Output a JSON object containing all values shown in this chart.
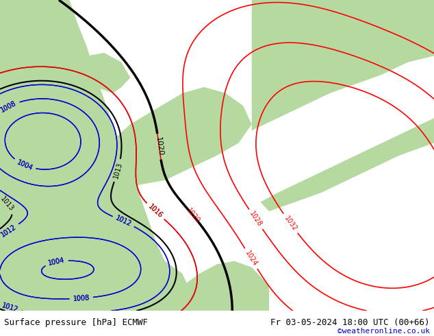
{
  "title_left": "Surface pressure [hPa] ECMWF",
  "title_right": "Fr 03-05-2024 18:00 UTC (00+66)",
  "credit": "©weatheronline.co.uk",
  "land_color": "#b5d9a0",
  "sea_color": "#d0d0d0",
  "fig_width": 6.34,
  "fig_height": 4.9,
  "dpi": 100,
  "bottom_bar_color": "#ffffff",
  "bottom_bar_height": 0.075,
  "footer_fontsize": 9,
  "credit_color": "#0000cc"
}
